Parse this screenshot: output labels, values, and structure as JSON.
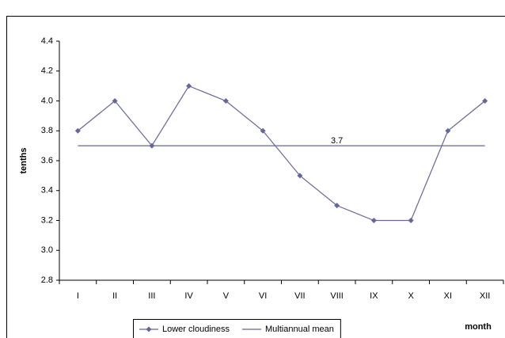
{
  "chart_data": {
    "type": "line",
    "y_label": "tenths",
    "x_label": "month",
    "categories": [
      "I",
      "II",
      "III",
      "IV",
      "V",
      "VI",
      "VII",
      "VIII",
      "IX",
      "X",
      "XI",
      "XII"
    ],
    "series": [
      {
        "name": "Lower cloudiness",
        "color": "#666699",
        "marker": "diamond",
        "values": [
          3.8,
          4.0,
          3.7,
          4.1,
          4.0,
          3.8,
          3.5,
          3.3,
          3.2,
          3.2,
          3.8,
          4.0
        ]
      },
      {
        "name": "Multiannual mean",
        "color": "#666699",
        "marker": "none",
        "values": [
          3.7,
          3.7,
          3.7,
          3.7,
          3.7,
          3.7,
          3.7,
          3.7,
          3.7,
          3.7,
          3.7,
          3.7
        ],
        "value_labels": [
          null,
          null,
          null,
          null,
          null,
          null,
          null,
          "3.7",
          null,
          null,
          null,
          null
        ]
      }
    ],
    "ylim": [
      2.8,
      4.4
    ],
    "yticks": [
      2.8,
      {
        "value": 3,
        "label": "3.0"
      },
      3.2,
      3.4,
      3.6,
      3.8,
      {
        "value": 4,
        "label": "4.0"
      },
      4.2,
      4.4
    ],
    "grid": false,
    "legend": "bottom"
  }
}
